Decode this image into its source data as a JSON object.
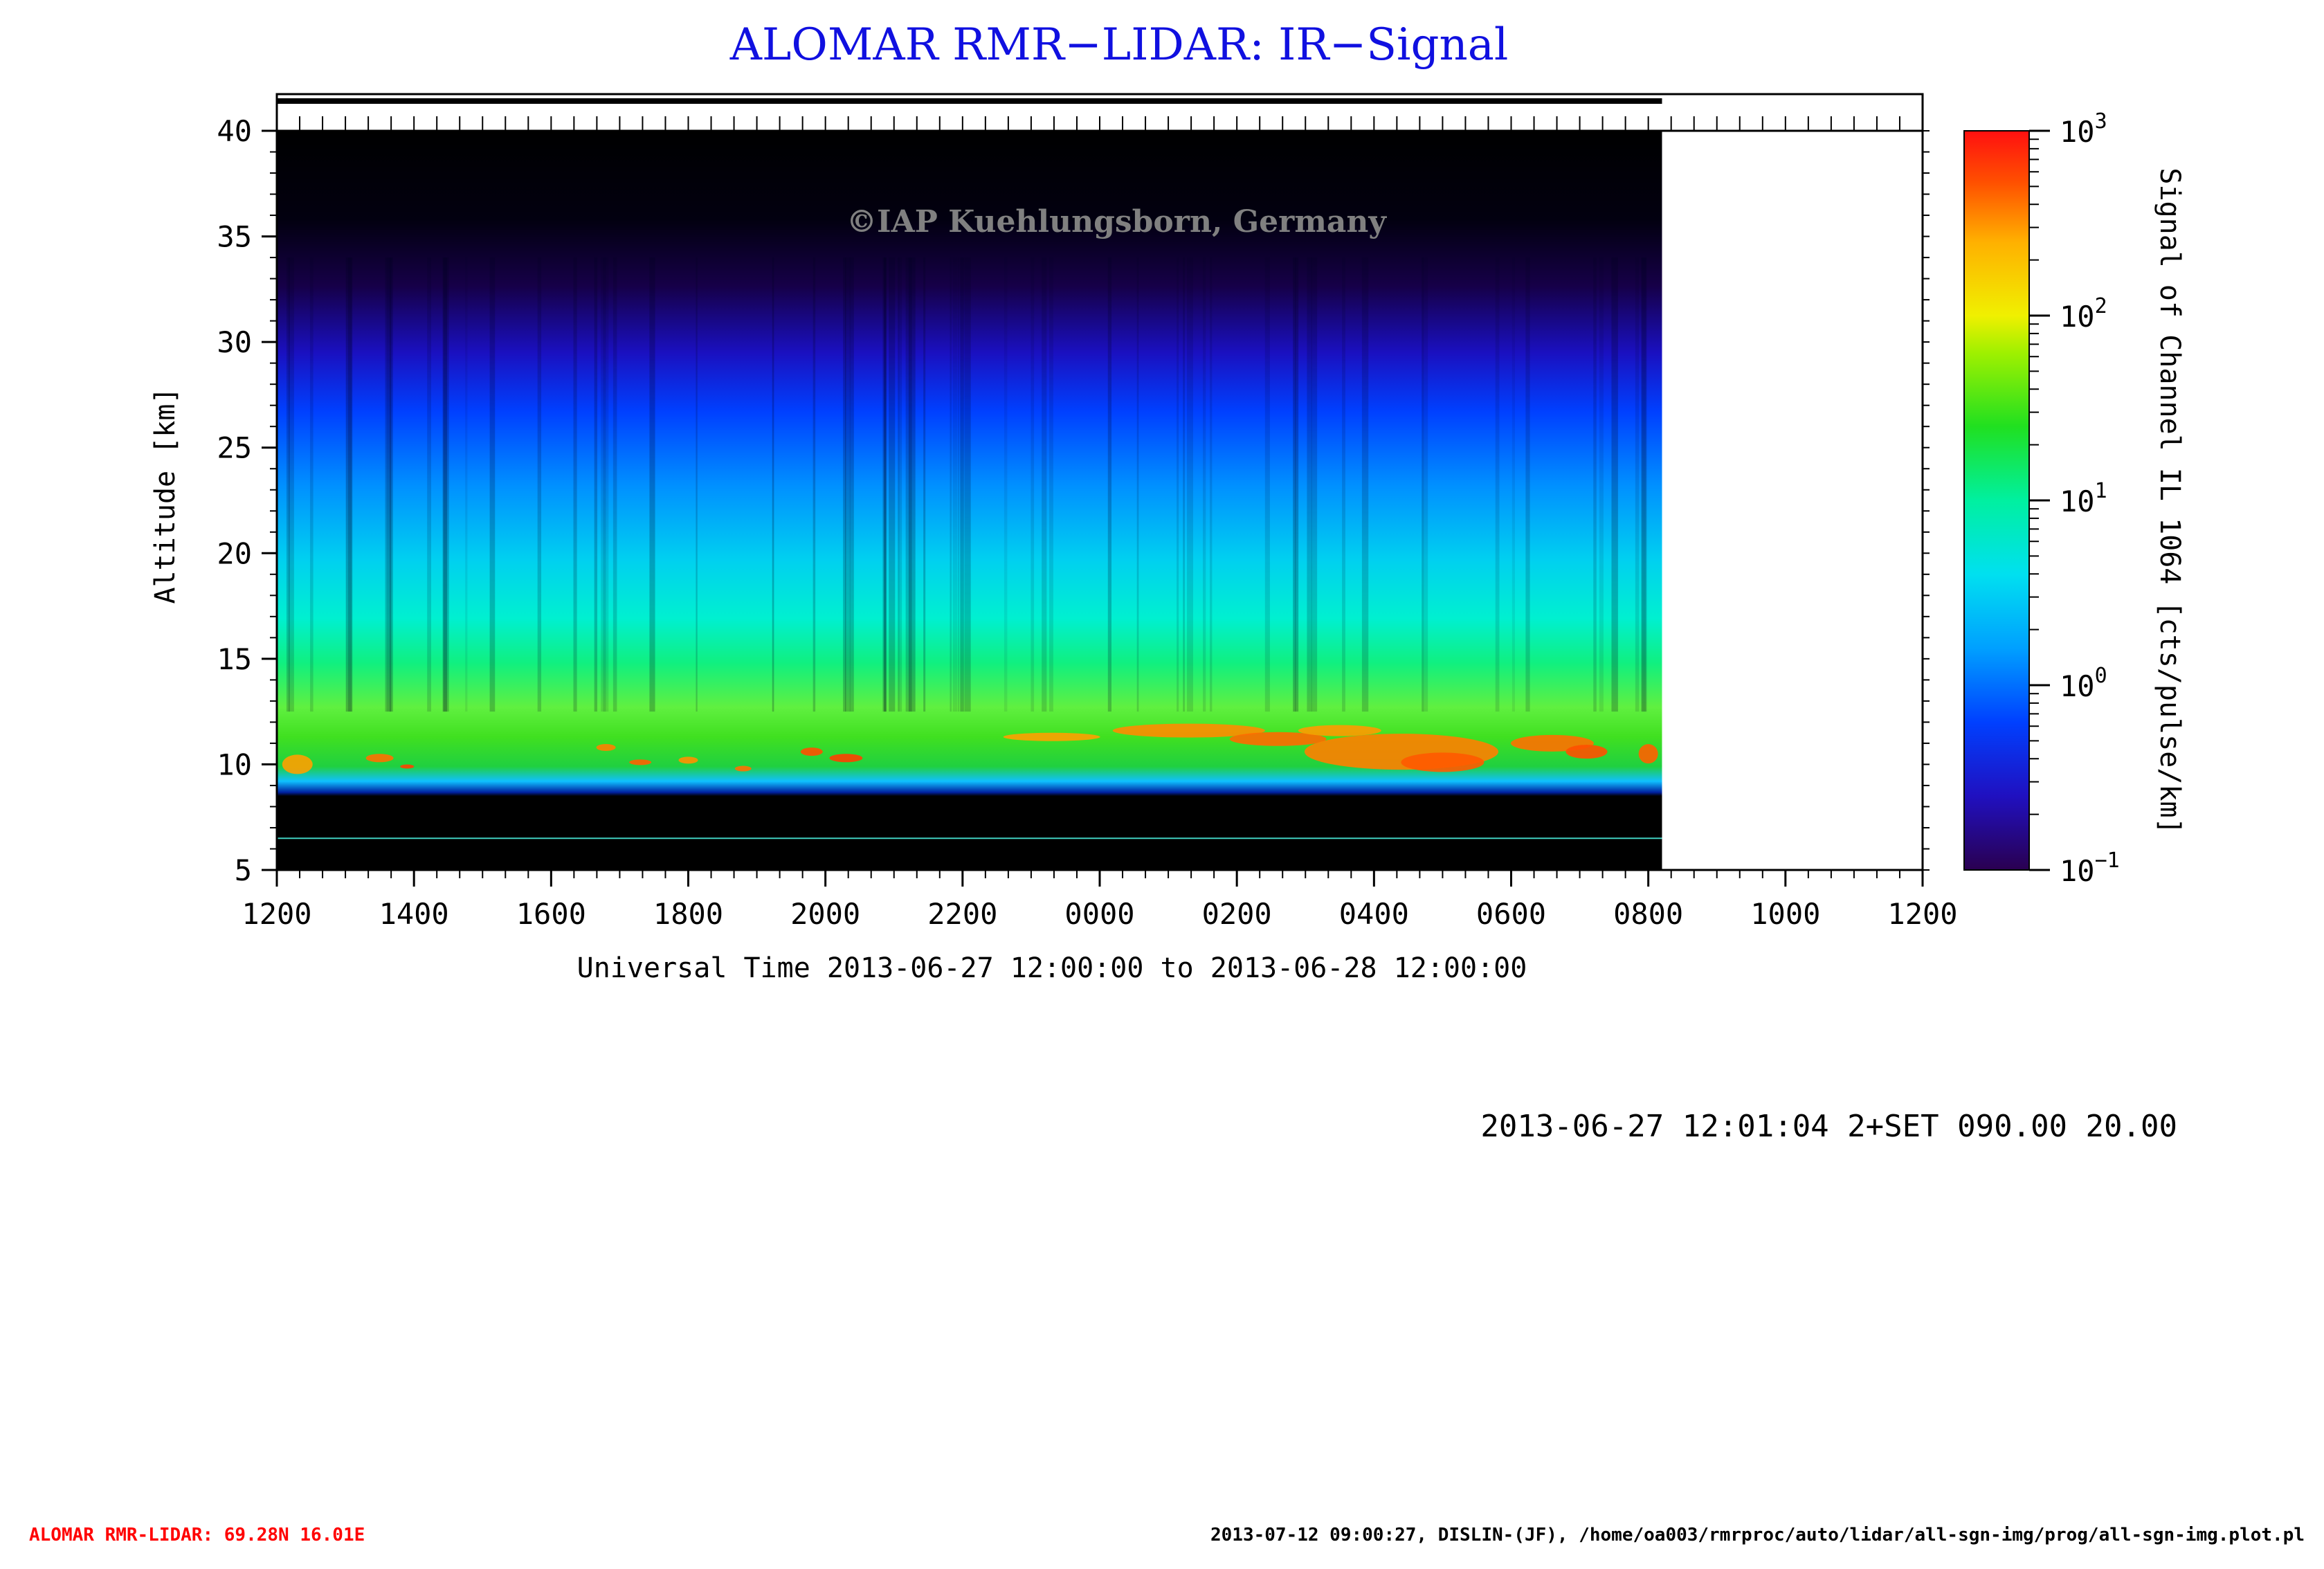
{
  "chart_data": {
    "type": "heatmap",
    "title": "ALOMAR RMR−LIDAR: IR−Signal",
    "watermark": "©IAP Kuehlungsborn, Germany",
    "xlabel": "Universal Time 2013-06-27 12:00:00 to 2013-06-28 12:00:00",
    "ylabel": "Altitude [km]",
    "x_tick_labels": [
      "1200",
      "1400",
      "1600",
      "1800",
      "2000",
      "2200",
      "0000",
      "0200",
      "0400",
      "0600",
      "0800",
      "1000",
      "1200"
    ],
    "x_range_hours": [
      0,
      24
    ],
    "data_end_hour": 20.2,
    "ylim": [
      5,
      40
    ],
    "y_ticks": [
      5,
      10,
      15,
      20,
      25,
      30,
      35,
      40
    ],
    "colorbar": {
      "label": "Signal of Channel IL 1064 [cts/pulse/km]",
      "scale": "log",
      "range": [
        0.1,
        1000
      ],
      "ticks": [
        {
          "base": "10",
          "exp": "3",
          "value": 1000
        },
        {
          "base": "10",
          "exp": "2",
          "value": 100
        },
        {
          "base": "10",
          "exp": "1",
          "value": 10
        },
        {
          "base": "10",
          "exp": "0",
          "value": 1
        },
        {
          "base": "10",
          "exp": "−1",
          "value": 0.1
        }
      ]
    },
    "cloud_layer_km": [
      9,
      12
    ],
    "lower_blank_below_km": 8.5,
    "colors": {
      "title": "#1010e0",
      "footer_left": "#ff0000",
      "background": "#000000"
    }
  },
  "footer": {
    "run_info": "2013-06-27 12:01:04 2+SET 090.00 20.00",
    "station": "ALOMAR RMR-LIDAR: 69.28N 16.01E",
    "source": "2013-07-12 09:00:27, DISLIN-(JF), /home/oa003/rmrproc/auto/lidar/all-sgn-img/prog/all-sgn-img.plot.pl"
  }
}
